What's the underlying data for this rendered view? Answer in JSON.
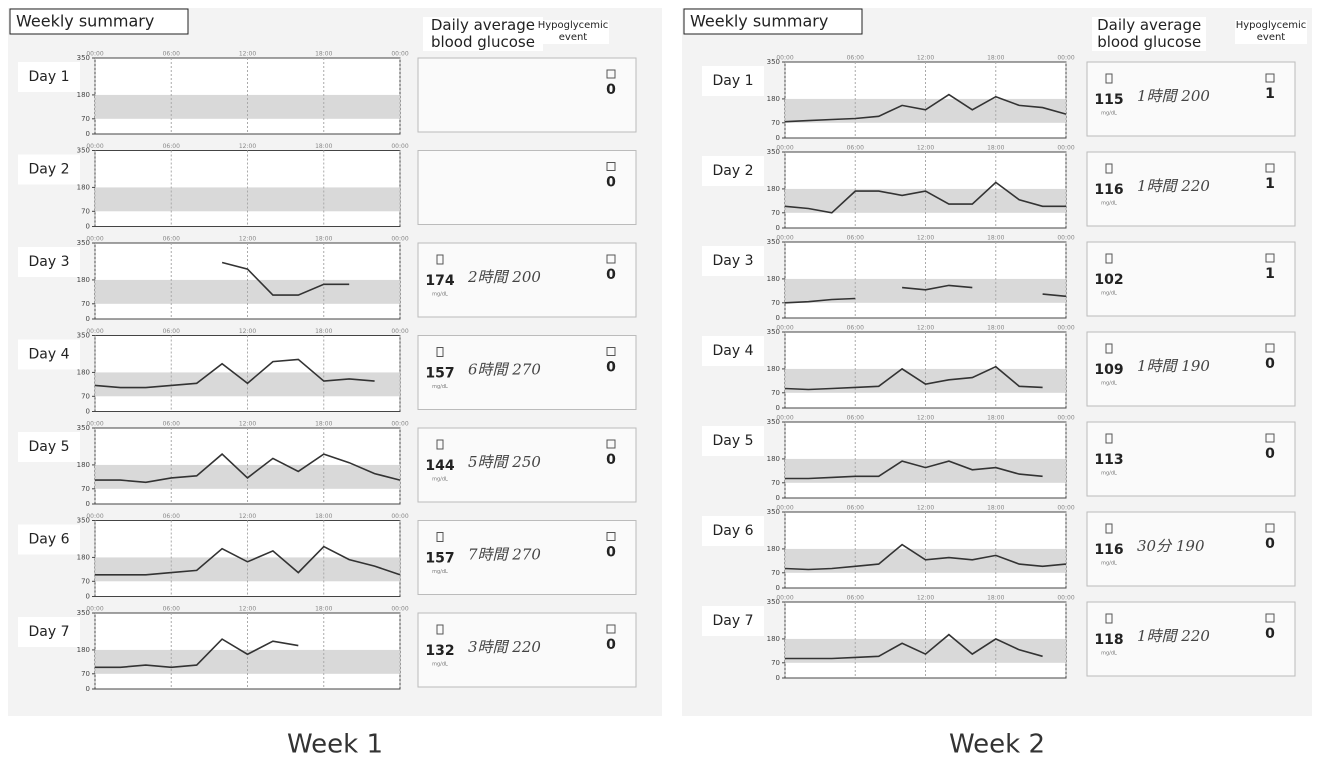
{
  "panels": [
    {
      "title": "Weekly summary",
      "avg_header": "Daily average blood glucose",
      "hypo_header": "Hypoglycemic event",
      "caption": "Week 1",
      "axis": {
        "x": [
          0,
          2,
          4,
          6,
          8,
          10,
          12,
          14,
          16,
          18,
          20,
          22,
          24
        ],
        "xlim": [
          0,
          24
        ],
        "xticks": [
          {
            "value": 0,
            "label": "00:00"
          },
          {
            "value": 6,
            "label": "06:00"
          },
          {
            "value": 12,
            "label": "12:00"
          },
          {
            "value": 18,
            "label": "18:00"
          },
          {
            "value": 24,
            "label": "00:00"
          }
        ],
        "ylim": [
          0,
          350
        ],
        "yticks": [
          0,
          70,
          180,
          350
        ],
        "unit": "mg/dL",
        "target_band": [
          70,
          180
        ],
        "color": "#333333"
      },
      "days": [
        {
          "label": "Day 1",
          "type": "line",
          "values": [
            null,
            null,
            null,
            null,
            null,
            null,
            null,
            null,
            null,
            null,
            null,
            null,
            null
          ],
          "hypo": 0
        },
        {
          "label": "Day 2",
          "type": "line",
          "values": [
            null,
            null,
            null,
            null,
            null,
            null,
            null,
            null,
            null,
            null,
            null,
            null,
            null
          ],
          "hypo": 0
        },
        {
          "label": "Day 3",
          "type": "line",
          "values": [
            null,
            null,
            null,
            null,
            null,
            260,
            230,
            110,
            110,
            160,
            160,
            null,
            null
          ],
          "avg": 174,
          "note": "2時間 200",
          "hypo": 0
        },
        {
          "label": "Day 4",
          "type": "line",
          "values": [
            120,
            110,
            110,
            120,
            130,
            220,
            130,
            230,
            240,
            140,
            150,
            140,
            null
          ],
          "avg": 157,
          "note": "6時間 270",
          "hypo": 0
        },
        {
          "label": "Day 5",
          "type": "line",
          "values": [
            110,
            110,
            100,
            120,
            130,
            230,
            120,
            210,
            150,
            230,
            190,
            140,
            110
          ],
          "avg": 144,
          "note": "5時間 250",
          "hypo": 0
        },
        {
          "label": "Day 6",
          "type": "line",
          "values": [
            100,
            100,
            100,
            110,
            120,
            220,
            160,
            210,
            110,
            230,
            170,
            140,
            100
          ],
          "avg": 157,
          "note": "7時間 270",
          "hypo": 0
        },
        {
          "label": "Day 7",
          "type": "line",
          "values": [
            100,
            100,
            110,
            100,
            110,
            230,
            160,
            220,
            200,
            null,
            null,
            null,
            null
          ],
          "avg": 132,
          "note": "3時間 220",
          "hypo": 0
        }
      ]
    },
    {
      "title": "Weekly summary",
      "avg_header": "Daily average blood glucose",
      "hypo_header": "Hypoglycemic event",
      "caption": "Week 2",
      "axis": {
        "x": [
          0,
          2,
          4,
          6,
          8,
          10,
          12,
          14,
          16,
          18,
          20,
          22,
          24
        ],
        "xlim": [
          0,
          24
        ],
        "xticks": [
          {
            "value": 0,
            "label": "00:00"
          },
          {
            "value": 6,
            "label": "06:00"
          },
          {
            "value": 12,
            "label": "12:00"
          },
          {
            "value": 18,
            "label": "18:00"
          },
          {
            "value": 24,
            "label": "00:00"
          }
        ],
        "ylim": [
          0,
          350
        ],
        "yticks": [
          0,
          70,
          180,
          350
        ],
        "unit": "mg/dL",
        "target_band": [
          70,
          180
        ],
        "color": "#333333"
      },
      "days": [
        {
          "label": "Day 1",
          "type": "line",
          "values": [
            75,
            80,
            85,
            90,
            100,
            150,
            130,
            200,
            130,
            190,
            150,
            140,
            110
          ],
          "avg": 115,
          "note": "1時間 200",
          "hypo": 1
        },
        {
          "label": "Day 2",
          "type": "line",
          "values": [
            100,
            90,
            70,
            170,
            170,
            150,
            170,
            110,
            110,
            210,
            130,
            100,
            100
          ],
          "avg": 116,
          "note": "1時間 220",
          "hypo": 1
        },
        {
          "label": "Day 3",
          "type": "line",
          "values": [
            70,
            75,
            85,
            90,
            null,
            140,
            130,
            150,
            140,
            null,
            null,
            110,
            100
          ],
          "avg": 102,
          "hypo": 1
        },
        {
          "label": "Day 4",
          "type": "line",
          "values": [
            90,
            85,
            90,
            95,
            100,
            180,
            110,
            130,
            140,
            190,
            100,
            95,
            null
          ],
          "avg": 109,
          "note": "1時間 190",
          "hypo": 0
        },
        {
          "label": "Day 5",
          "type": "line",
          "values": [
            90,
            90,
            95,
            100,
            100,
            170,
            140,
            170,
            130,
            140,
            110,
            100,
            null
          ],
          "avg": 113,
          "hypo": 0
        },
        {
          "label": "Day 6",
          "type": "line",
          "values": [
            90,
            85,
            90,
            100,
            110,
            200,
            130,
            140,
            130,
            150,
            110,
            100,
            110
          ],
          "avg": 116,
          "note": "30分 190",
          "hypo": 0
        },
        {
          "label": "Day 7",
          "type": "line",
          "values": [
            90,
            90,
            90,
            95,
            100,
            160,
            110,
            200,
            110,
            180,
            130,
            100,
            null
          ],
          "avg": 118,
          "note": "1時間 220",
          "hypo": 0
        }
      ]
    }
  ]
}
